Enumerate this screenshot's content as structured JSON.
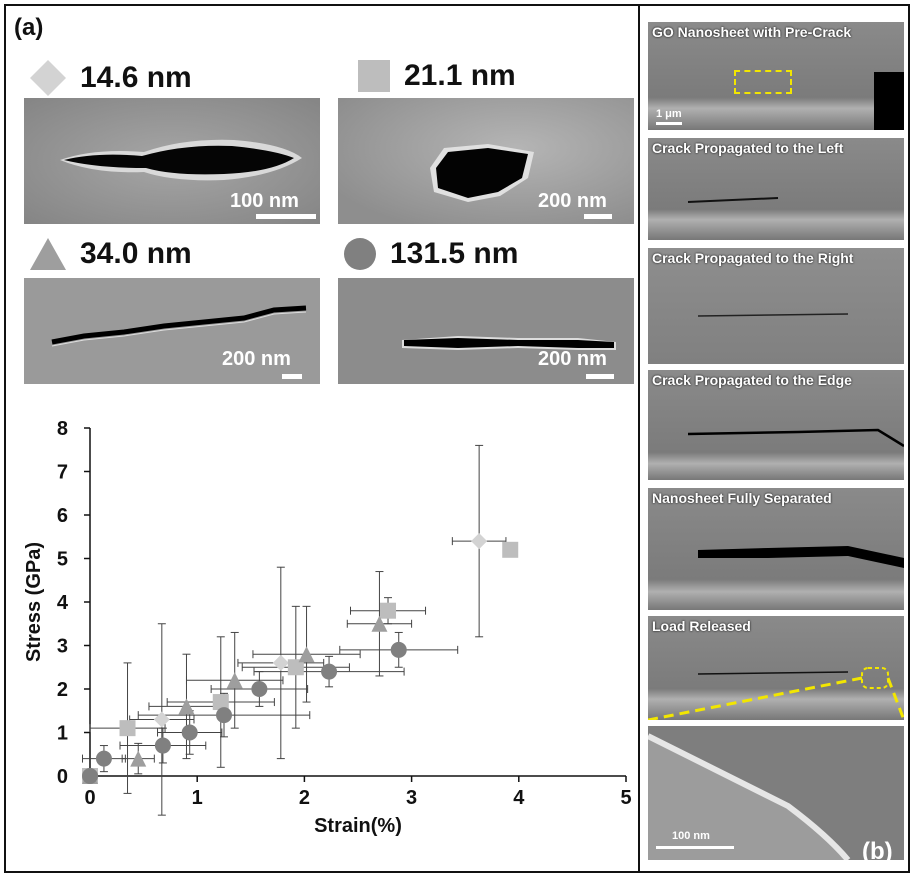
{
  "panel_a_label": "(a)",
  "panel_b_label": "(b)",
  "legend": [
    {
      "shape": "diamond",
      "color": "#d3d3d3",
      "label": "14.6 nm"
    },
    {
      "shape": "square",
      "color": "#bdbdbd",
      "label": "21.1 nm"
    },
    {
      "shape": "triangle",
      "color": "#9e9e9e",
      "label": "34.0 nm"
    },
    {
      "shape": "circle",
      "color": "#808080",
      "label": "131.5 nm"
    }
  ],
  "sem_scalebars": [
    "100 nm",
    "200 nm",
    "200 nm",
    "200 nm"
  ],
  "strips": [
    {
      "caption": "GO Nanosheet with Pre-Crack",
      "scale": "1 μm"
    },
    {
      "caption": "Crack Propagated to the Left"
    },
    {
      "caption": "Crack Propagated to the Right"
    },
    {
      "caption": "Crack Propagated to the Edge"
    },
    {
      "caption": "Nanosheet Fully Separated"
    },
    {
      "caption": "Load Released"
    },
    {
      "caption": "",
      "scale": "100 nm"
    }
  ],
  "chart_data": {
    "type": "scatter",
    "xlabel": "Strain(%)",
    "ylabel": "Stress (GPa)",
    "xlim": [
      0,
      5
    ],
    "ylim": [
      0,
      8
    ],
    "xticks": [
      "0",
      "1",
      "2",
      "3",
      "4",
      "5"
    ],
    "yticks": [
      "0",
      "1",
      "2",
      "3",
      "4",
      "5",
      "6",
      "7",
      "8"
    ],
    "series": [
      {
        "name": "14.6 nm",
        "marker": "diamond",
        "color": "#d3d3d3",
        "points": [
          {
            "x": 0.0,
            "y": 0.0
          },
          {
            "x": 0.67,
            "y": 1.3,
            "yerr": 2.2,
            "xerr": 0.3
          },
          {
            "x": 1.78,
            "y": 2.6,
            "yerr": 2.2,
            "xerr": 0.4
          },
          {
            "x": 3.63,
            "y": 5.4,
            "yerr": 2.2,
            "xerr": 0.25
          }
        ]
      },
      {
        "name": "21.1 nm",
        "marker": "square",
        "color": "#bdbdbd",
        "points": [
          {
            "x": 0.0,
            "y": 0.0
          },
          {
            "x": 0.35,
            "y": 1.1,
            "yerr": 1.5,
            "xerr": 0.35
          },
          {
            "x": 1.22,
            "y": 1.7,
            "yerr": 1.5,
            "xerr": 0.5
          },
          {
            "x": 1.92,
            "y": 2.5,
            "yerr": 1.4,
            "xerr": 0.5
          },
          {
            "x": 2.78,
            "y": 3.8,
            "yerr": 0.3,
            "xerr": 0.35
          },
          {
            "x": 3.92,
            "y": 5.2
          }
        ]
      },
      {
        "name": "34.0 nm",
        "marker": "triangle",
        "color": "#9e9e9e",
        "points": [
          {
            "x": 0.0,
            "y": 0.0
          },
          {
            "x": 0.45,
            "y": 0.4,
            "yerr": 0.35,
            "xerr": 0.15
          },
          {
            "x": 0.9,
            "y": 1.6,
            "yerr": 1.2,
            "xerr": 0.35
          },
          {
            "x": 1.35,
            "y": 2.2,
            "yerr": 1.1,
            "xerr": 0.45
          },
          {
            "x": 2.02,
            "y": 2.8,
            "yerr": 1.1,
            "xerr": 0.5
          },
          {
            "x": 2.7,
            "y": 3.5,
            "yerr": 1.2,
            "xerr": 0.3
          }
        ]
      },
      {
        "name": "131.5 nm",
        "marker": "circle",
        "color": "#808080",
        "points": [
          {
            "x": 0.0,
            "y": 0.0
          },
          {
            "x": 0.13,
            "y": 0.4,
            "yerr": 0.3,
            "xerr": 0.2
          },
          {
            "x": 0.68,
            "y": 0.7,
            "yerr": 0.4,
            "xerr": 0.4
          },
          {
            "x": 0.93,
            "y": 1.0,
            "yerr": 0.5,
            "xerr": 0.3
          },
          {
            "x": 1.25,
            "y": 1.4,
            "yerr": 0.5,
            "xerr": 0.8
          },
          {
            "x": 1.58,
            "y": 2.0,
            "yerr": 0.4,
            "xerr": 0.45
          },
          {
            "x": 2.23,
            "y": 2.4,
            "yerr": 0.35,
            "xerr": 0.7
          },
          {
            "x": 2.88,
            "y": 2.9,
            "yerr": 0.4,
            "xerr": 0.55
          }
        ]
      }
    ]
  }
}
